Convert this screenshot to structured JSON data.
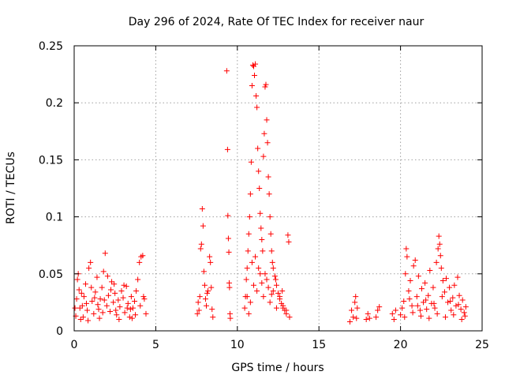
{
  "chart_data": {
    "type": "scatter",
    "title": "Day 296 of 2024, Rate Of TEC Index for receiver naur",
    "xlabel": "GPS time / hours",
    "ylabel": "ROTI / TECUs",
    "xlim": [
      0,
      25
    ],
    "ylim": [
      0,
      0.25
    ],
    "xticks": [
      0,
      5,
      10,
      15,
      20,
      25
    ],
    "xtick_labels": [
      "0",
      "5",
      "10",
      "15",
      "20",
      "25"
    ],
    "yticks": [
      0,
      0.05,
      0.1,
      0.15,
      0.2,
      0.25
    ],
    "ytick_labels": [
      "0",
      "0.05",
      "0.1",
      "0.15",
      "0.2",
      "0.25"
    ],
    "grid": true,
    "marker": "+",
    "color": "#ff0000",
    "series": [
      {
        "points": [
          [
            0.1,
            0.013
          ],
          [
            0.15,
            0.028
          ],
          [
            0.2,
            0.045
          ],
          [
            0.25,
            0.05
          ],
          [
            0.3,
            0.036
          ],
          [
            0.35,
            0.02
          ],
          [
            0.4,
            0.01
          ],
          [
            0.5,
            0.022
          ],
          [
            0.6,
            0.03
          ],
          [
            0.7,
            0.041
          ],
          [
            0.8,
            0.018
          ],
          [
            0.9,
            0.055
          ],
          [
            1.0,
            0.06
          ],
          [
            1.1,
            0.026
          ],
          [
            1.2,
            0.015
          ],
          [
            1.3,
            0.034
          ],
          [
            1.4,
            0.047
          ],
          [
            1.5,
            0.019
          ],
          [
            1.6,
            0.028
          ],
          [
            1.7,
            0.038
          ],
          [
            1.8,
            0.052
          ],
          [
            1.9,
            0.068
          ],
          [
            2.0,
            0.022
          ],
          [
            2.1,
            0.031
          ],
          [
            2.2,
            0.017
          ],
          [
            2.3,
            0.043
          ],
          [
            2.4,
            0.025
          ],
          [
            2.5,
            0.033
          ],
          [
            2.6,
            0.014
          ],
          [
            2.7,
            0.027
          ],
          [
            2.8,
            0.021
          ],
          [
            2.9,
            0.035
          ],
          [
            3.0,
            0.029
          ],
          [
            3.1,
            0.016
          ],
          [
            3.2,
            0.039
          ],
          [
            3.3,
            0.024
          ],
          [
            3.4,
            0.012
          ],
          [
            3.5,
            0.03
          ],
          [
            3.6,
            0.02
          ],
          [
            3.7,
            0.026
          ],
          [
            3.8,
            0.035
          ],
          [
            3.9,
            0.045
          ],
          [
            4.0,
            0.06
          ],
          [
            4.1,
            0.065
          ],
          [
            4.2,
            0.066
          ],
          [
            4.3,
            0.028
          ],
          [
            4.4,
            0.015
          ],
          [
            0.05,
            0.02
          ],
          [
            0.55,
            0.012
          ],
          [
            1.05,
            0.038
          ],
          [
            1.55,
            0.011
          ],
          [
            2.05,
            0.048
          ],
          [
            2.55,
            0.018
          ],
          [
            3.05,
            0.04
          ],
          [
            3.55,
            0.011
          ],
          [
            4.05,
            0.022
          ],
          [
            0.75,
            0.024
          ],
          [
            1.25,
            0.029
          ],
          [
            1.75,
            0.016
          ],
          [
            2.25,
            0.036
          ],
          [
            2.75,
            0.01
          ],
          [
            3.25,
            0.02
          ],
          [
            3.75,
            0.014
          ],
          [
            4.25,
            0.03
          ],
          [
            0.45,
            0.033
          ],
          [
            1.45,
            0.023
          ],
          [
            2.45,
            0.041
          ],
          [
            3.45,
            0.019
          ],
          [
            0.85,
            0.009
          ],
          [
            1.85,
            0.027
          ],
          [
            7.55,
            0.015
          ],
          [
            7.6,
            0.025
          ],
          [
            7.65,
            0.018
          ],
          [
            7.7,
            0.03
          ],
          [
            7.75,
            0.072
          ],
          [
            7.8,
            0.076
          ],
          [
            7.85,
            0.107
          ],
          [
            7.9,
            0.092
          ],
          [
            7.95,
            0.052
          ],
          [
            8.0,
            0.04
          ],
          [
            8.05,
            0.028
          ],
          [
            8.1,
            0.022
          ],
          [
            8.15,
            0.033
          ],
          [
            8.2,
            0.035
          ],
          [
            8.3,
            0.065
          ],
          [
            8.35,
            0.06
          ],
          [
            8.4,
            0.038
          ],
          [
            8.45,
            0.019
          ],
          [
            8.5,
            0.012
          ],
          [
            9.35,
            0.228
          ],
          [
            9.4,
            0.159
          ],
          [
            9.42,
            0.101
          ],
          [
            9.45,
            0.081
          ],
          [
            9.48,
            0.069
          ],
          [
            9.5,
            0.042
          ],
          [
            9.52,
            0.038
          ],
          [
            9.55,
            0.015
          ],
          [
            9.57,
            0.011
          ],
          [
            10.45,
            0.02
          ],
          [
            10.5,
            0.03
          ],
          [
            10.55,
            0.045
          ],
          [
            10.6,
            0.055
          ],
          [
            10.65,
            0.07
          ],
          [
            10.7,
            0.085
          ],
          [
            10.75,
            0.1
          ],
          [
            10.8,
            0.12
          ],
          [
            10.85,
            0.148
          ],
          [
            10.9,
            0.215
          ],
          [
            10.95,
            0.233
          ],
          [
            11.0,
            0.232
          ],
          [
            11.05,
            0.224
          ],
          [
            11.1,
            0.234
          ],
          [
            11.15,
            0.206
          ],
          [
            11.2,
            0.196
          ],
          [
            11.25,
            0.16
          ],
          [
            11.3,
            0.14
          ],
          [
            11.35,
            0.125
          ],
          [
            11.4,
            0.103
          ],
          [
            11.45,
            0.09
          ],
          [
            11.5,
            0.08
          ],
          [
            11.55,
            0.07
          ],
          [
            11.6,
            0.153
          ],
          [
            11.65,
            0.173
          ],
          [
            11.7,
            0.214
          ],
          [
            11.75,
            0.216
          ],
          [
            11.8,
            0.185
          ],
          [
            11.85,
            0.165
          ],
          [
            11.9,
            0.135
          ],
          [
            11.95,
            0.12
          ],
          [
            12.0,
            0.1
          ],
          [
            12.05,
            0.085
          ],
          [
            12.1,
            0.07
          ],
          [
            12.15,
            0.06
          ],
          [
            12.2,
            0.055
          ],
          [
            12.3,
            0.048
          ],
          [
            12.4,
            0.04
          ],
          [
            12.5,
            0.033
          ],
          [
            12.6,
            0.028
          ],
          [
            12.7,
            0.024
          ],
          [
            12.8,
            0.02
          ],
          [
            12.9,
            0.018
          ],
          [
            13.0,
            0.015
          ],
          [
            13.1,
            0.084
          ],
          [
            13.15,
            0.078
          ],
          [
            13.2,
            0.012
          ],
          [
            10.6,
            0.03
          ],
          [
            10.8,
            0.025
          ],
          [
            11.0,
            0.04
          ],
          [
            11.2,
            0.035
          ],
          [
            11.4,
            0.05
          ],
          [
            11.6,
            0.03
          ],
          [
            11.8,
            0.045
          ],
          [
            12.0,
            0.025
          ],
          [
            12.2,
            0.035
          ],
          [
            12.4,
            0.02
          ],
          [
            12.6,
            0.03
          ],
          [
            12.8,
            0.022
          ],
          [
            13.0,
            0.018
          ],
          [
            10.7,
            0.015
          ],
          [
            10.9,
            0.06
          ],
          [
            11.1,
            0.065
          ],
          [
            11.3,
            0.055
          ],
          [
            11.5,
            0.042
          ],
          [
            11.7,
            0.05
          ],
          [
            11.9,
            0.038
          ],
          [
            12.1,
            0.032
          ],
          [
            12.35,
            0.045
          ],
          [
            12.75,
            0.035
          ],
          [
            16.9,
            0.008
          ],
          [
            17.0,
            0.018
          ],
          [
            17.1,
            0.012
          ],
          [
            17.2,
            0.025
          ],
          [
            17.25,
            0.03
          ],
          [
            17.3,
            0.011
          ],
          [
            17.35,
            0.02
          ],
          [
            17.9,
            0.01
          ],
          [
            18.0,
            0.015
          ],
          [
            18.1,
            0.011
          ],
          [
            18.5,
            0.012
          ],
          [
            18.6,
            0.018
          ],
          [
            18.7,
            0.021
          ],
          [
            19.5,
            0.015
          ],
          [
            19.6,
            0.01
          ],
          [
            19.7,
            0.018
          ],
          [
            20.0,
            0.014
          ],
          [
            20.1,
            0.02
          ],
          [
            20.2,
            0.026
          ],
          [
            20.3,
            0.05
          ],
          [
            20.35,
            0.072
          ],
          [
            20.4,
            0.065
          ],
          [
            20.5,
            0.035
          ],
          [
            20.6,
            0.044
          ],
          [
            20.7,
            0.022
          ],
          [
            20.8,
            0.057
          ],
          [
            20.9,
            0.062
          ],
          [
            21.0,
            0.03
          ],
          [
            21.1,
            0.048
          ],
          [
            21.2,
            0.018
          ],
          [
            21.3,
            0.037
          ],
          [
            21.4,
            0.025
          ],
          [
            21.5,
            0.042
          ],
          [
            21.6,
            0.019
          ],
          [
            21.7,
            0.031
          ],
          [
            21.8,
            0.053
          ],
          [
            21.9,
            0.024
          ],
          [
            22.0,
            0.038
          ],
          [
            22.1,
            0.02
          ],
          [
            22.2,
            0.06
          ],
          [
            22.3,
            0.072
          ],
          [
            22.35,
            0.083
          ],
          [
            22.4,
            0.076
          ],
          [
            22.45,
            0.066
          ],
          [
            22.5,
            0.055
          ],
          [
            22.6,
            0.044
          ],
          [
            22.7,
            0.034
          ],
          [
            22.8,
            0.046
          ],
          [
            22.9,
            0.025
          ],
          [
            23.0,
            0.038
          ],
          [
            23.1,
            0.018
          ],
          [
            23.2,
            0.029
          ],
          [
            23.3,
            0.04
          ],
          [
            23.4,
            0.022
          ],
          [
            23.5,
            0.047
          ],
          [
            23.6,
            0.031
          ],
          [
            23.7,
            0.019
          ],
          [
            23.8,
            0.027
          ],
          [
            23.9,
            0.016
          ],
          [
            24.0,
            0.021
          ],
          [
            20.25,
            0.012
          ],
          [
            20.75,
            0.016
          ],
          [
            21.25,
            0.013
          ],
          [
            21.75,
            0.011
          ],
          [
            22.25,
            0.015
          ],
          [
            22.75,
            0.012
          ],
          [
            23.25,
            0.014
          ],
          [
            23.75,
            0.01
          ],
          [
            20.55,
            0.028
          ],
          [
            21.05,
            0.022
          ],
          [
            21.55,
            0.027
          ],
          [
            22.05,
            0.024
          ],
          [
            22.55,
            0.03
          ],
          [
            23.05,
            0.026
          ],
          [
            23.55,
            0.023
          ],
          [
            23.95,
            0.013
          ]
        ]
      }
    ]
  }
}
